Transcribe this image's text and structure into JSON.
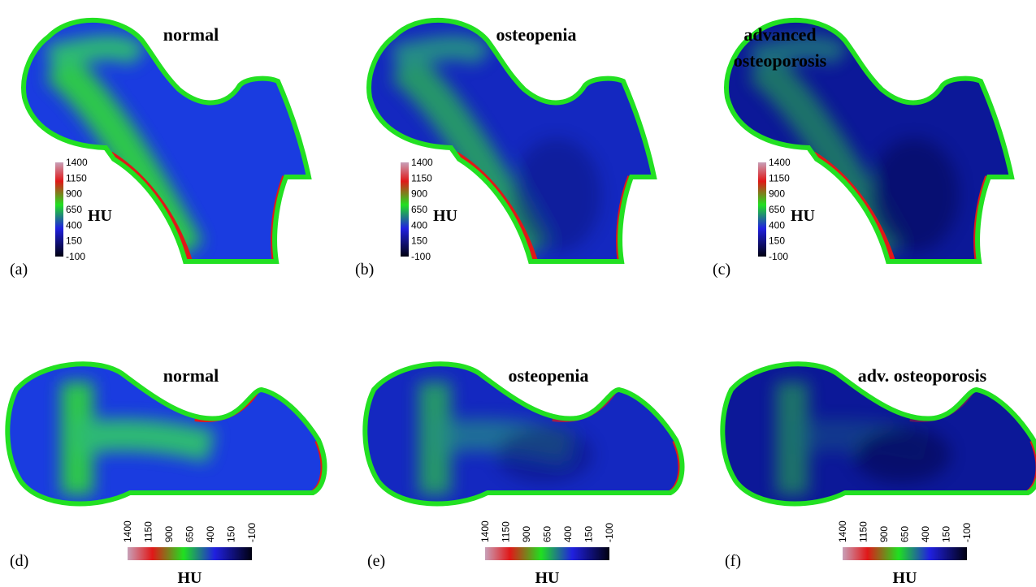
{
  "panels": [
    {
      "label": "(a)",
      "title": [
        "normal"
      ],
      "colorbar": {
        "ticks": [
          1400,
          1150,
          900,
          650,
          400,
          150,
          -100
        ],
        "unit": "HU"
      }
    },
    {
      "label": "(b)",
      "title": [
        "osteopenia"
      ],
      "colorbar": {
        "ticks": [
          1400,
          1150,
          900,
          650,
          400,
          150,
          -100
        ],
        "unit": "HU"
      }
    },
    {
      "label": "(c)",
      "title": [
        "advanced",
        "osteoporosis"
      ],
      "colorbar": {
        "ticks": [
          1400,
          1150,
          900,
          650,
          400,
          150,
          -100
        ],
        "unit": "HU"
      }
    },
    {
      "label": "(d)",
      "title": [
        "normal"
      ],
      "colorbar": {
        "ticks": [
          1400,
          1150,
          900,
          650,
          400,
          150,
          -100
        ],
        "unit": "HU"
      }
    },
    {
      "label": "(e)",
      "title": [
        "osteopenia"
      ],
      "colorbar": {
        "ticks": [
          1400,
          1150,
          900,
          650,
          400,
          150,
          -100
        ],
        "unit": "HU"
      }
    },
    {
      "label": "(f)",
      "title": [
        "adv. osteoporosis"
      ],
      "colorbar": {
        "ticks": [
          1400,
          1150,
          900,
          650,
          400,
          150,
          -100
        ],
        "unit": "HU"
      }
    }
  ]
}
